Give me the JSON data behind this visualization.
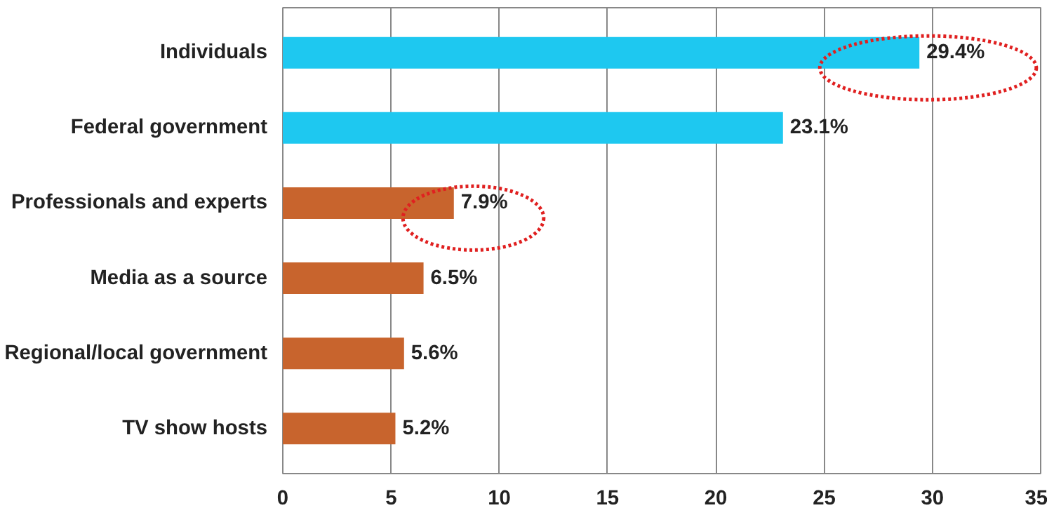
{
  "chart_data": {
    "type": "bar",
    "orientation": "horizontal",
    "categories": [
      "Individuals",
      "Federal government",
      "Professionals and experts",
      "Media as a source",
      "Regional/local government",
      "TV show hosts"
    ],
    "values": [
      29.4,
      23.1,
      7.9,
      6.5,
      5.6,
      5.2
    ],
    "colors": [
      "#1ec8f0",
      "#1ec8f0",
      "#c8642d",
      "#c8642d",
      "#c8642d",
      "#c8642d"
    ],
    "value_labels": [
      "29.4%",
      "23.1%",
      "7.9%",
      "6.5%",
      "5.6%",
      "5.2%"
    ],
    "xlim": [
      0,
      35
    ],
    "xticks": [
      0,
      5,
      10,
      15,
      20,
      25,
      30,
      35
    ],
    "grid": "x"
  }
}
